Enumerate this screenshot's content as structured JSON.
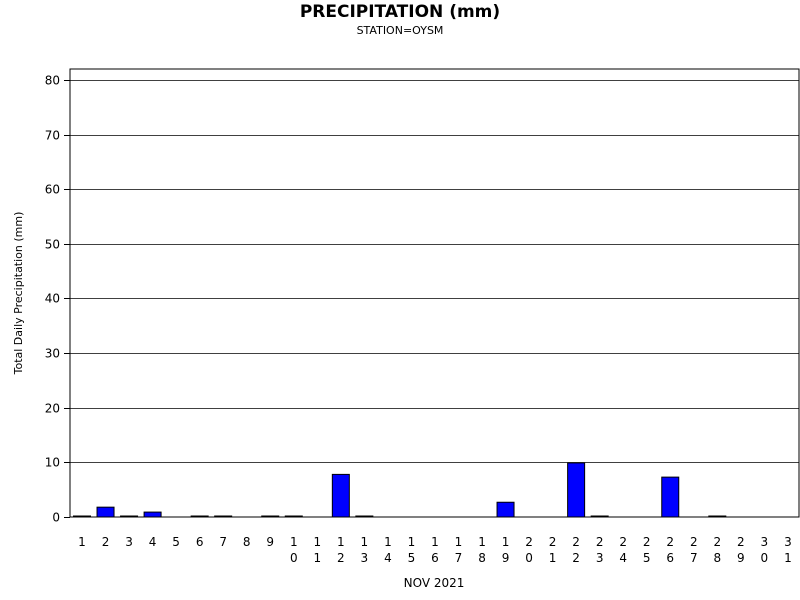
{
  "chart_data": {
    "type": "bar",
    "title": "PRECIPITATION (mm)",
    "subtitle": "STATION=OYSM",
    "xlabel": "NOV 2021",
    "ylabel": "Total Daily Precipitation (mm)",
    "ylim": [
      0,
      82
    ],
    "yticks": [
      0,
      10,
      20,
      30,
      40,
      50,
      60,
      70,
      80
    ],
    "grid": true,
    "bar_color": "#0000ff",
    "categories": [
      "1",
      "2",
      "3",
      "4",
      "5",
      "6",
      "7",
      "8",
      "9",
      "10",
      "11",
      "12",
      "13",
      "14",
      "15",
      "16",
      "17",
      "18",
      "19",
      "20",
      "21",
      "22",
      "23",
      "24",
      "25",
      "26",
      "27",
      "28",
      "29",
      "30",
      "31"
    ],
    "values": [
      0.1,
      1.8,
      0.1,
      0.9,
      null,
      0.1,
      0.1,
      null,
      0.1,
      0.1,
      null,
      7.8,
      0.1,
      null,
      null,
      null,
      null,
      null,
      2.7,
      null,
      null,
      9.9,
      0.1,
      null,
      null,
      7.3,
      null,
      0.1,
      null,
      null,
      null
    ]
  }
}
